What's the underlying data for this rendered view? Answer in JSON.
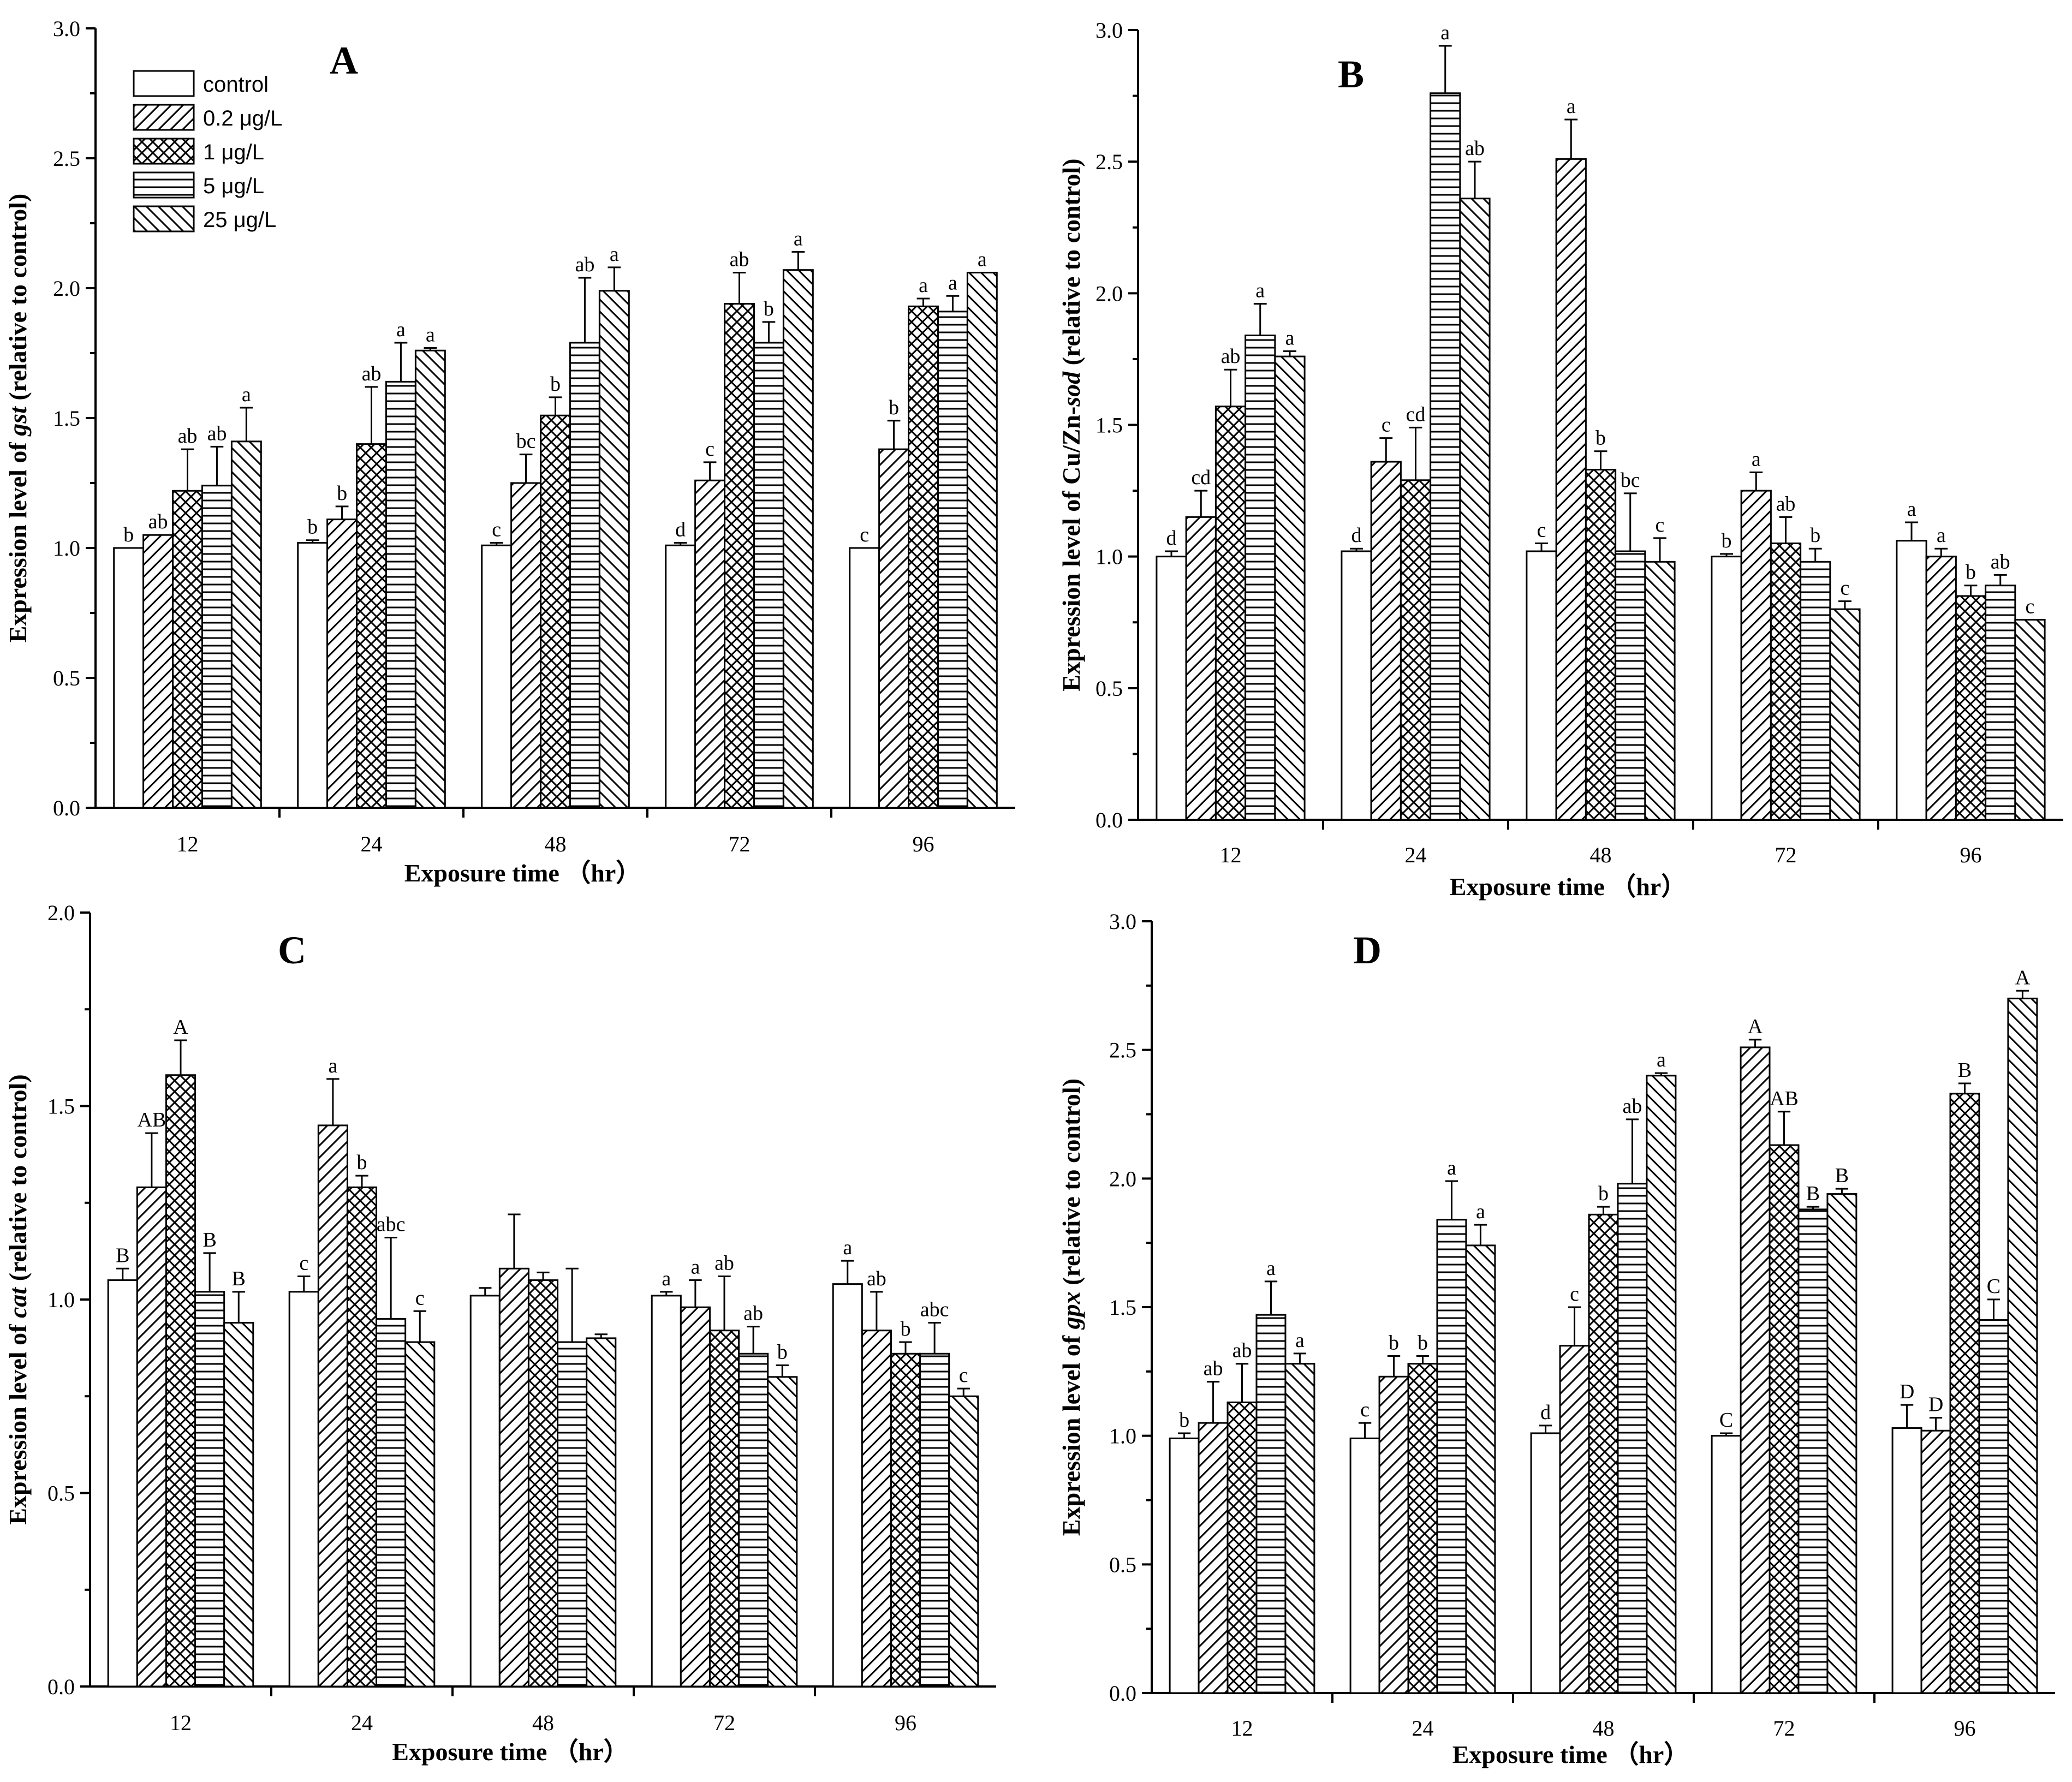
{
  "legend": [
    {
      "label": "control",
      "pattern": "none"
    },
    {
      "label": "0.2 μg/L",
      "pattern": "diag-right"
    },
    {
      "label": "1 μg/L",
      "pattern": "cross"
    },
    {
      "label": "5 μg/L",
      "pattern": "horizontal"
    },
    {
      "label": "25 μg/L",
      "pattern": "diag-left"
    }
  ],
  "chart_data": [
    {
      "panel": "A",
      "type": "bar",
      "ylabel_prefix": "Expression level of ",
      "ylabel_gene": "gst",
      "ylabel_suffix": " (relative to control)",
      "xlabel": "Exposure time （hr）",
      "ylim": [
        0,
        3.0
      ],
      "yticks": [
        "0.0",
        "0.5",
        "1.0",
        "1.5",
        "2.0",
        "2.5",
        "3.0"
      ],
      "categories": [
        "12",
        "24",
        "48",
        "72",
        "96"
      ],
      "series": [
        {
          "name": "control",
          "values": [
            1.0,
            1.02,
            1.01,
            1.01,
            1.0
          ],
          "errors": [
            0,
            0.01,
            0.01,
            0.01,
            0
          ],
          "labels": [
            "b",
            "b",
            "c",
            "d",
            "c"
          ]
        },
        {
          "name": "0.2 μg/L",
          "values": [
            1.05,
            1.11,
            1.25,
            1.26,
            1.38
          ],
          "errors": [
            0,
            0.05,
            0.11,
            0.07,
            0.11
          ],
          "labels": [
            "ab",
            "b",
            "bc",
            "c",
            "b"
          ]
        },
        {
          "name": "1 μg/L",
          "values": [
            1.22,
            1.4,
            1.51,
            1.94,
            1.93
          ],
          "errors": [
            0.16,
            0.22,
            0.07,
            0.12,
            0.03
          ],
          "labels": [
            "ab",
            "ab",
            "b",
            "ab",
            "a"
          ]
        },
        {
          "name": "5 μg/L",
          "values": [
            1.24,
            1.64,
            1.79,
            1.79,
            1.91
          ],
          "errors": [
            0.15,
            0.15,
            0.25,
            0.08,
            0.06
          ],
          "labels": [
            "ab",
            "a",
            "ab",
            "b",
            "a"
          ]
        },
        {
          "name": "25 μg/L",
          "values": [
            1.41,
            1.76,
            1.99,
            2.07,
            2.06
          ],
          "errors": [
            0.13,
            0.01,
            0.09,
            0.07,
            0
          ],
          "labels": [
            "a",
            "a",
            "a",
            "a",
            "a"
          ]
        }
      ]
    },
    {
      "panel": "B",
      "type": "bar",
      "ylabel_prefix": "Expression level of Cu/Zn-",
      "ylabel_gene": "sod",
      "ylabel_suffix": " (relative to control)",
      "xlabel": "Exposure time （hr）",
      "ylim": [
        0,
        3.0
      ],
      "yticks": [
        "0.0",
        "0.5",
        "1.0",
        "1.5",
        "2.0",
        "2.5",
        "3.0"
      ],
      "categories": [
        "12",
        "24",
        "48",
        "72",
        "96"
      ],
      "series": [
        {
          "name": "control",
          "values": [
            1.0,
            1.02,
            1.02,
            1.0,
            1.06
          ],
          "errors": [
            0.02,
            0.01,
            0.03,
            0.01,
            0.07
          ],
          "labels": [
            "d",
            "d",
            "c",
            "b",
            "a"
          ]
        },
        {
          "name": "0.2 μg/L",
          "values": [
            1.15,
            1.36,
            2.51,
            1.25,
            1.0
          ],
          "errors": [
            0.1,
            0.09,
            0.15,
            0.07,
            0.03
          ],
          "labels": [
            "cd",
            "c",
            "a",
            "a",
            "a"
          ]
        },
        {
          "name": "1 μg/L",
          "values": [
            1.57,
            1.29,
            1.33,
            1.05,
            0.85
          ],
          "errors": [
            0.14,
            0.2,
            0.07,
            0.1,
            0.04
          ],
          "labels": [
            "ab",
            "cd",
            "b",
            "ab",
            "b"
          ]
        },
        {
          "name": "5 μg/L",
          "values": [
            1.84,
            2.76,
            1.02,
            0.98,
            0.89
          ],
          "errors": [
            0.12,
            0.18,
            0.22,
            0.05,
            0.04
          ],
          "labels": [
            "a",
            "a",
            "bc",
            "b",
            "ab"
          ]
        },
        {
          "name": "25 μg/L",
          "values": [
            1.76,
            2.36,
            0.98,
            0.8,
            0.76
          ],
          "errors": [
            0.02,
            0.14,
            0.09,
            0.03,
            0
          ],
          "labels": [
            "a",
            "ab",
            "c",
            "c",
            "c"
          ]
        }
      ]
    },
    {
      "panel": "C",
      "type": "bar",
      "ylabel_prefix": "Expression level of ",
      "ylabel_gene": "cat",
      "ylabel_suffix": " (relative to control)",
      "xlabel": "Exposure time （hr）",
      "ylim": [
        0,
        2.0
      ],
      "yticks": [
        "0.0",
        "0.5",
        "1.0",
        "1.5",
        "2.0"
      ],
      "categories": [
        "12",
        "24",
        "48",
        "72",
        "96"
      ],
      "series": [
        {
          "name": "control",
          "values": [
            1.05,
            1.02,
            1.01,
            1.01,
            1.04
          ],
          "errors": [
            0.03,
            0.04,
            0.02,
            0.01,
            0.06
          ],
          "labels": [
            "B",
            "c",
            "",
            "a",
            "a"
          ]
        },
        {
          "name": "0.2 μg/L",
          "values": [
            1.29,
            1.45,
            1.08,
            0.98,
            0.92
          ],
          "errors": [
            0.14,
            0.12,
            0.14,
            0.07,
            0.1
          ],
          "labels": [
            "AB",
            "a",
            "",
            "a",
            "ab"
          ]
        },
        {
          "name": "1 μg/L",
          "values": [
            1.58,
            1.29,
            1.05,
            0.92,
            0.86
          ],
          "errors": [
            0.09,
            0.03,
            0.02,
            0.14,
            0.03
          ],
          "labels": [
            "A",
            "b",
            "",
            "ab",
            "b"
          ]
        },
        {
          "name": "5 μg/L",
          "values": [
            1.02,
            0.95,
            0.89,
            0.86,
            0.86
          ],
          "errors": [
            0.1,
            0.21,
            0.19,
            0.07,
            0.08
          ],
          "labels": [
            "B",
            "abc",
            "",
            "ab",
            "abc"
          ]
        },
        {
          "name": "25 μg/L",
          "values": [
            0.94,
            0.89,
            0.9,
            0.8,
            0.75
          ],
          "errors": [
            0.08,
            0.08,
            0.01,
            0.03,
            0.02
          ],
          "labels": [
            "B",
            "c",
            "",
            "b",
            "c"
          ]
        }
      ]
    },
    {
      "panel": "D",
      "type": "bar",
      "ylabel_prefix": "Expression level of ",
      "ylabel_gene": "gpx",
      "ylabel_suffix": "  (relative to control)",
      "xlabel": "Exposure time （hr）",
      "ylim": [
        0,
        3.0
      ],
      "yticks": [
        "0.0",
        "0.5",
        "1.0",
        "1.5",
        "2.0",
        "2.5",
        "3.0"
      ],
      "categories": [
        "12",
        "24",
        "48",
        "72",
        "96"
      ],
      "series": [
        {
          "name": "control",
          "values": [
            0.99,
            0.99,
            1.01,
            1.0,
            1.03
          ],
          "errors": [
            0.02,
            0.06,
            0.03,
            0.01,
            0.09
          ],
          "labels": [
            "b",
            "c",
            "d",
            "C",
            "D"
          ]
        },
        {
          "name": "0.2 μg/L",
          "values": [
            1.05,
            1.23,
            1.35,
            2.51,
            1.02
          ],
          "errors": [
            0.16,
            0.08,
            0.15,
            0.03,
            0.05
          ],
          "labels": [
            "ab",
            "b",
            "c",
            "A",
            "D"
          ]
        },
        {
          "name": "1 μg/L",
          "values": [
            1.13,
            1.28,
            1.86,
            2.13,
            2.33
          ],
          "errors": [
            0.15,
            0.03,
            0.03,
            0.13,
            0.04
          ],
          "labels": [
            "ab",
            "b",
            "b",
            "AB",
            "B"
          ]
        },
        {
          "name": "5 μg/L",
          "values": [
            1.47,
            1.84,
            1.98,
            1.88,
            1.45
          ],
          "errors": [
            0.13,
            0.15,
            0.25,
            0.01,
            0.08
          ],
          "labels": [
            "a",
            "a",
            "ab",
            "B",
            "C"
          ]
        },
        {
          "name": "25 μg/L",
          "values": [
            1.28,
            1.74,
            2.4,
            1.94,
            2.7
          ],
          "errors": [
            0.04,
            0.08,
            0.01,
            0.02,
            0.03
          ],
          "labels": [
            "a",
            "a",
            "a",
            "B",
            "A"
          ]
        }
      ]
    }
  ]
}
